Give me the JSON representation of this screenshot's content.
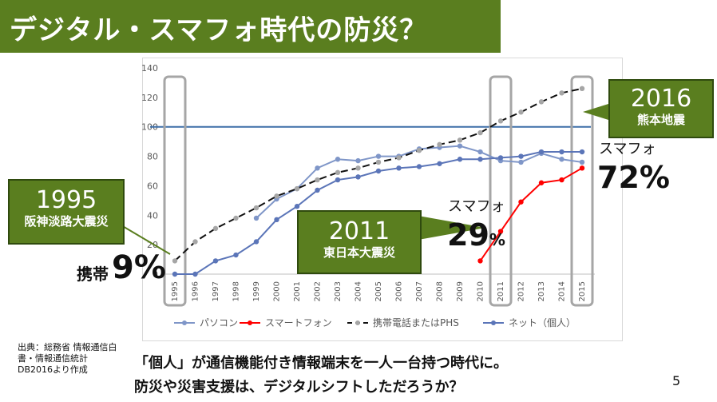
{
  "title": "デジタル・スマフォ時代の防災？",
  "chart_data": {
    "type": "line",
    "categories": [
      "1995",
      "1996",
      "1997",
      "1998",
      "1999",
      "2000",
      "2001",
      "2002",
      "2003",
      "2004",
      "2005",
      "2006",
      "2007",
      "2008",
      "2009",
      "2010",
      "2011",
      "2012",
      "2013",
      "2014",
      "2015"
    ],
    "ylim": [
      0,
      140
    ],
    "yticks": [
      0,
      20,
      40,
      60,
      80,
      100,
      120,
      140
    ],
    "grid": false,
    "legend_position": "bottom",
    "reference_line": 100,
    "series": [
      {
        "name": "パソコン",
        "color": "#7f96c8",
        "dash": "none",
        "values": [
          null,
          null,
          null,
          null,
          38,
          51,
          58,
          72,
          78,
          77,
          80,
          80,
          85,
          86,
          87,
          83,
          77,
          76,
          82,
          78,
          76
        ]
      },
      {
        "name": "スマートフォン",
        "color": "#ff0000",
        "dash": "none",
        "values": [
          null,
          null,
          null,
          null,
          null,
          null,
          null,
          null,
          null,
          null,
          null,
          null,
          null,
          null,
          null,
          9,
          29,
          49,
          62,
          64,
          72
        ]
      },
      {
        "name": "携帯電話またはPHS",
        "color": "#111111",
        "dash": "dash",
        "values": [
          9,
          22,
          31,
          38,
          45,
          53,
          58,
          64,
          69,
          72,
          76,
          79,
          84,
          88,
          91,
          96,
          104,
          110,
          117,
          123,
          126
        ]
      },
      {
        "name": "ネット（個人）",
        "color": "#5b75b8",
        "dash": "none",
        "values": [
          0,
          0,
          9,
          13,
          22,
          37,
          46,
          57,
          64,
          66,
          70,
          72,
          73,
          75,
          78,
          78,
          79,
          80,
          83,
          83,
          83
        ]
      }
    ]
  },
  "callouts": [
    {
      "year": "1995",
      "event": "阪神淡路大震災"
    },
    {
      "year": "2011",
      "event": "東日本大震災"
    },
    {
      "year": "2016",
      "event": "熊本地震"
    }
  ],
  "annotations": {
    "keitai_label": "携帯",
    "keitai_pct": "9%",
    "smaho_2011_label": "スマフォ",
    "smaho_2011_pct": "29",
    "smaho_2011_pct_sign": "%",
    "smaho_2015_label": "スマフォ",
    "smaho_2015_pct": "72%"
  },
  "source": "出典：総務省 情報通信白書・情報通信統計DB2016より作成",
  "bottom_line1": "「個人」が通信機能付き情報端末を一人一台持つ時代に。",
  "bottom_line2": "防災や災害支援は、デジタルシフトしただろうか？",
  "page_number": "5"
}
